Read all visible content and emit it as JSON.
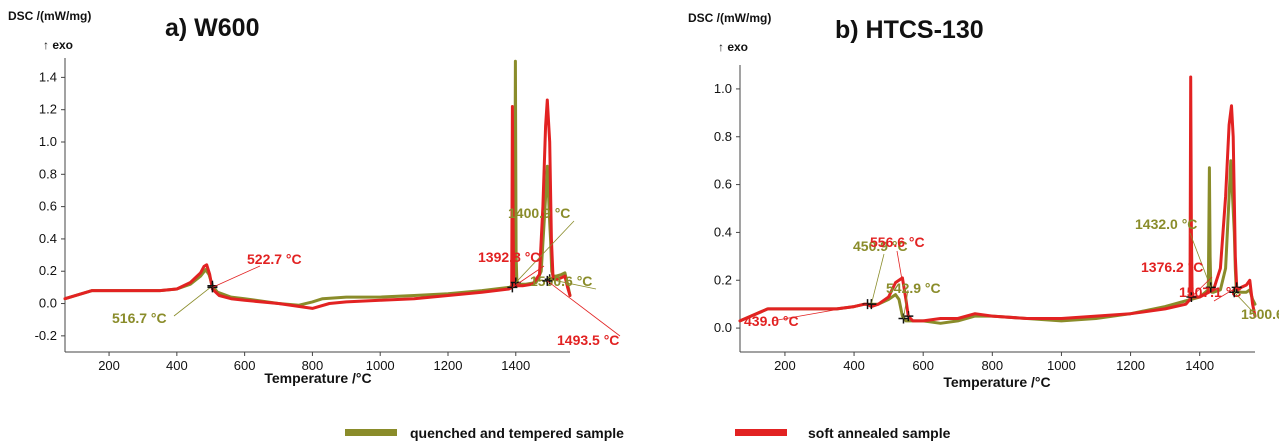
{
  "chart_data": [
    {
      "type": "line",
      "title": "a) W600",
      "ylabel": "DSC /(mW/mg)",
      "y_direction_label": "↑ exo",
      "xlabel": "Temperature /°C",
      "xlim": [
        70,
        1560
      ],
      "ylim": [
        -0.3,
        1.52
      ],
      "xticks": [
        200,
        400,
        600,
        800,
        1000,
        1200,
        1400
      ],
      "yticks": [
        -0.2,
        0.0,
        0.2,
        0.4,
        0.6,
        0.8,
        1.0,
        1.2,
        1.4
      ],
      "grid": false,
      "series": [
        {
          "name": "quenched and tempered sample",
          "color": "#8a8c2a",
          "x": [
            70,
            150,
            250,
            350,
            400,
            440,
            470,
            485,
            495,
            505,
            520,
            560,
            600,
            700,
            760,
            800,
            830,
            900,
            1000,
            1100,
            1200,
            1300,
            1380,
            1393,
            1397,
            1399,
            1401,
            1403,
            1405,
            1410,
            1430,
            1460,
            1475,
            1485,
            1493,
            1500,
            1503,
            1506,
            1510,
            1520,
            1535,
            1545,
            1553,
            1560
          ],
          "y": [
            0.03,
            0.08,
            0.08,
            0.08,
            0.09,
            0.12,
            0.17,
            0.21,
            0.18,
            0.11,
            0.07,
            0.04,
            0.03,
            0.0,
            -0.01,
            0.01,
            0.03,
            0.04,
            0.04,
            0.05,
            0.06,
            0.08,
            0.1,
            0.11,
            0.4,
            1.5,
            0.3,
            0.15,
            0.13,
            0.12,
            0.12,
            0.13,
            0.2,
            0.55,
            0.85,
            0.5,
            0.38,
            0.2,
            0.17,
            0.17,
            0.18,
            0.19,
            0.12,
            0.05
          ]
        },
        {
          "name": "soft annealed sample",
          "color": "#e22222",
          "x": [
            70,
            150,
            250,
            350,
            400,
            440,
            470,
            480,
            488,
            497,
            505,
            525,
            560,
            600,
            700,
            800,
            850,
            900,
            1000,
            1100,
            1200,
            1300,
            1380,
            1388,
            1390,
            1392,
            1394,
            1396,
            1400,
            1420,
            1450,
            1470,
            1480,
            1488,
            1493,
            1500,
            1505,
            1510,
            1520,
            1535,
            1545,
            1553,
            1560
          ],
          "y": [
            0.03,
            0.08,
            0.08,
            0.08,
            0.09,
            0.13,
            0.19,
            0.23,
            0.24,
            0.18,
            0.09,
            0.05,
            0.03,
            0.02,
            0.0,
            -0.03,
            0.0,
            0.01,
            0.02,
            0.03,
            0.05,
            0.07,
            0.09,
            0.1,
            1.22,
            0.5,
            0.15,
            0.12,
            0.11,
            0.11,
            0.12,
            0.18,
            0.6,
            1.1,
            1.26,
            1.0,
            0.4,
            0.15,
            0.15,
            0.16,
            0.17,
            0.1,
            0.05
          ]
        }
      ],
      "annotations": [
        {
          "text": "516.7 °C",
          "series": 0,
          "x": 505,
          "y": 0.11
        },
        {
          "text": "522.7 °C",
          "series": 1,
          "x": 505,
          "y": 0.1
        },
        {
          "text": "1400.9 °C",
          "series": 0,
          "x": 1400,
          "y": 0.13
        },
        {
          "text": "1392.8 °C",
          "series": 1,
          "x": 1390,
          "y": 0.1
        },
        {
          "text": "1500.6 °C",
          "series": 0,
          "x": 1500,
          "y": 0.15
        },
        {
          "text": "1493.5 °C",
          "series": 1,
          "x": 1493,
          "y": 0.14
        }
      ]
    },
    {
      "type": "line",
      "title": "b) HTCS-130",
      "ylabel": "DSC /(mW/mg)",
      "y_direction_label": "↑ exo",
      "xlabel": "Temperature /°C",
      "xlim": [
        70,
        1560
      ],
      "ylim": [
        -0.1,
        1.1
      ],
      "xticks": [
        200,
        400,
        600,
        800,
        1000,
        1200,
        1400
      ],
      "yticks": [
        0.0,
        0.2,
        0.4,
        0.6,
        0.8,
        1.0
      ],
      "grid": false,
      "series": [
        {
          "name": "quenched and tempered sample",
          "color": "#8a8c2a",
          "x": [
            70,
            150,
            250,
            350,
            400,
            430,
            450,
            470,
            500,
            520,
            530,
            540,
            550,
            570,
            600,
            650,
            700,
            750,
            800,
            900,
            1000,
            1100,
            1200,
            1300,
            1400,
            1425,
            1428,
            1430,
            1432,
            1435,
            1440,
            1460,
            1475,
            1485,
            1490,
            1500,
            1503,
            1506,
            1510,
            1520,
            1535,
            1545,
            1553,
            1560
          ],
          "y": [
            0.03,
            0.08,
            0.08,
            0.08,
            0.09,
            0.1,
            0.1,
            0.1,
            0.12,
            0.14,
            0.12,
            0.05,
            0.03,
            0.03,
            0.03,
            0.02,
            0.03,
            0.05,
            0.05,
            0.04,
            0.03,
            0.04,
            0.06,
            0.09,
            0.13,
            0.16,
            0.67,
            0.3,
            0.17,
            0.15,
            0.15,
            0.16,
            0.25,
            0.55,
            0.7,
            0.4,
            0.25,
            0.16,
            0.15,
            0.15,
            0.15,
            0.16,
            0.12,
            0.1
          ]
        },
        {
          "name": "soft annealed sample",
          "color": "#e22222",
          "x": [
            70,
            150,
            250,
            350,
            400,
            430,
            439,
            450,
            470,
            500,
            520,
            540,
            550,
            557,
            570,
            600,
            650,
            700,
            750,
            800,
            900,
            1000,
            1100,
            1200,
            1300,
            1360,
            1372,
            1374,
            1376,
            1378,
            1380,
            1400,
            1440,
            1460,
            1475,
            1485,
            1492,
            1497,
            1503,
            1507,
            1510,
            1520,
            1535,
            1545,
            1553,
            1560
          ],
          "y": [
            0.03,
            0.08,
            0.08,
            0.08,
            0.09,
            0.1,
            0.1,
            0.09,
            0.1,
            0.13,
            0.19,
            0.21,
            0.12,
            0.05,
            0.03,
            0.03,
            0.04,
            0.04,
            0.06,
            0.05,
            0.04,
            0.04,
            0.05,
            0.06,
            0.08,
            0.1,
            0.12,
            1.05,
            0.4,
            0.15,
            0.13,
            0.13,
            0.16,
            0.25,
            0.55,
            0.85,
            0.93,
            0.8,
            0.3,
            0.17,
            0.16,
            0.17,
            0.18,
            0.2,
            0.1,
            0.05
          ]
        }
      ],
      "annotations": [
        {
          "text": "450.9 °C",
          "series": 0,
          "x": 450,
          "y": 0.1
        },
        {
          "text": "439.0 °C",
          "series": 1,
          "x": 439,
          "y": 0.1
        },
        {
          "text": "556.6 °C",
          "series": 1,
          "x": 557,
          "y": 0.05
        },
        {
          "text": "542.9 °C",
          "series": 0,
          "x": 543,
          "y": 0.04
        },
        {
          "text": "1432.0 °C",
          "series": 0,
          "x": 1432,
          "y": 0.17
        },
        {
          "text": "1376.2 °C",
          "series": 1,
          "x": 1376,
          "y": 0.13
        },
        {
          "text": "1507.1 °C",
          "series": 1,
          "x": 1507,
          "y": 0.17
        },
        {
          "text": "1500.6 °C",
          "series": 0,
          "x": 1500,
          "y": 0.15
        }
      ]
    }
  ],
  "legend": {
    "position": "bottom",
    "items": [
      {
        "label": "quenched and tempered sample",
        "color": "#8a8c2a"
      },
      {
        "label": "soft annealed sample",
        "color": "#e22222"
      }
    ]
  }
}
